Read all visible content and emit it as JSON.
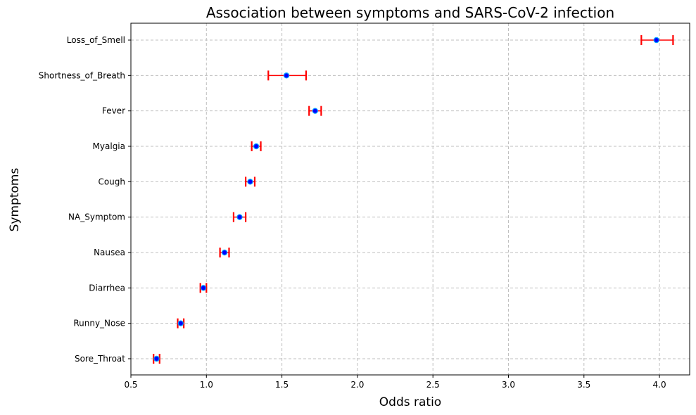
{
  "chart_data": {
    "type": "scatter",
    "title": "Association between symptoms and SARS-CoV-2 infection",
    "xlabel": "Odds ratio",
    "ylabel": "Symptoms",
    "xlim": [
      0.5,
      4.2
    ],
    "xticks": [
      0.5,
      1.0,
      1.5,
      2.0,
      2.5,
      3.0,
      3.5,
      4.0
    ],
    "xtick_labels": [
      "0.5",
      "1.0",
      "1.5",
      "2.0",
      "2.5",
      "3.0",
      "3.5",
      "4.0"
    ],
    "grid": true,
    "categories": [
      "Sore_Throat",
      "Runny_Nose",
      "Diarrhea",
      "Nausea",
      "NA_Symptom",
      "Cough",
      "Myalgia",
      "Fever",
      "Shortness_of_Breath",
      "Loss_of_Smell"
    ],
    "series": [
      {
        "odds_ratio": [
          0.67,
          0.83,
          0.98,
          1.12,
          1.22,
          1.29,
          1.33,
          1.72,
          1.53,
          3.98
        ],
        "ci_lower": [
          0.65,
          0.81,
          0.96,
          1.09,
          1.18,
          1.26,
          1.3,
          1.68,
          1.41,
          3.88
        ],
        "ci_upper": [
          0.69,
          0.85,
          1.0,
          1.15,
          1.26,
          1.32,
          1.36,
          1.76,
          1.66,
          4.09
        ]
      }
    ],
    "colors": {
      "point": "#0000ff",
      "point_edge": "#00a0ff",
      "error_bar": "#ff0000",
      "grid": "#bfbfbf"
    }
  }
}
